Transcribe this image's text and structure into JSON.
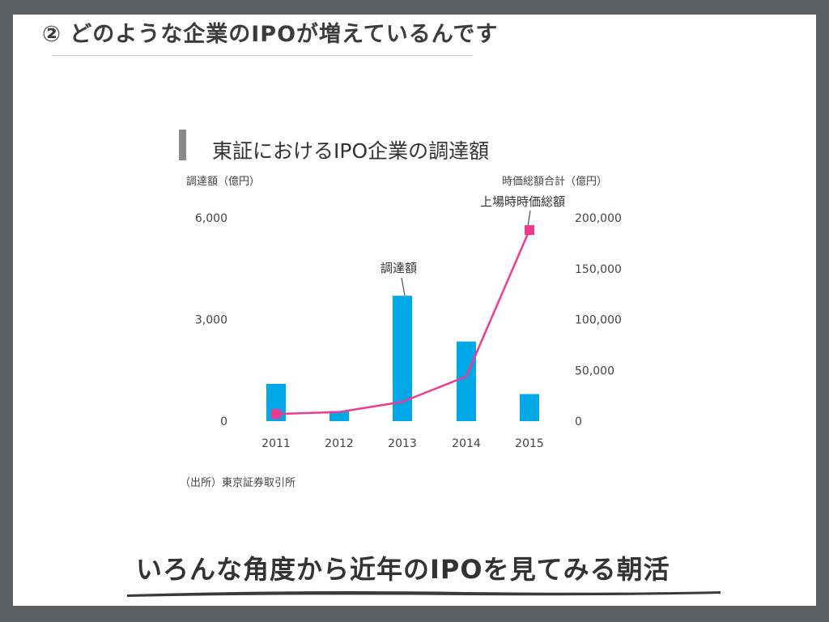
{
  "slide": {
    "heading": "② どのような企業のIPOが増えているんです",
    "footer": "いろんな角度から近年のIPOを見てみる朝活"
  },
  "chart_data": {
    "type": "bar+line",
    "title": "東証におけるIPO企業の調達額",
    "left_axis_title": "調達額（億円）",
    "right_axis_title": "時価総額合計（億円）",
    "categories": [
      "2011",
      "2012",
      "2013",
      "2014",
      "2015"
    ],
    "left_ylim": [
      0,
      6000
    ],
    "left_ticks": [
      "6,000",
      "3,000",
      "0"
    ],
    "left_tick_values": [
      6000,
      3000,
      0
    ],
    "right_ylim": [
      0,
      200000
    ],
    "right_ticks": [
      "200,000",
      "150,000",
      "100,000",
      "50,000",
      "0"
    ],
    "right_tick_values": [
      200000,
      150000,
      100000,
      50000,
      0
    ],
    "series": [
      {
        "name": "調達額",
        "type": "bar",
        "axis": "left",
        "color": "#00a8e8",
        "values": [
          1100,
          300,
          3700,
          2350,
          800
        ]
      },
      {
        "name": "上場時時価総額",
        "type": "line",
        "axis": "right",
        "color": "#ef3b8f",
        "values": [
          7000,
          9000,
          19000,
          44000,
          188000
        ],
        "markers_on": [
          "2011",
          "2015"
        ]
      }
    ],
    "annotations": {
      "bar_label": "調達額",
      "line_label": "上場時時価総額"
    },
    "source": "（出所）東京証券取引所"
  }
}
